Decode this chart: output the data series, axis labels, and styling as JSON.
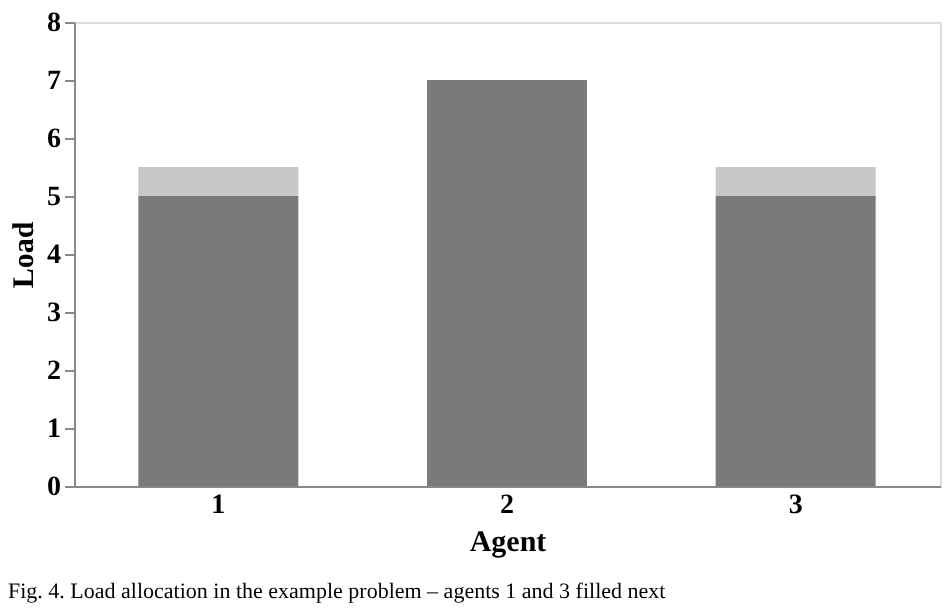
{
  "chart_data": {
    "type": "bar",
    "stacked": true,
    "xlabel": "Agent",
    "ylabel": "Load",
    "categories": [
      "1",
      "2",
      "3"
    ],
    "series": [
      {
        "color": "#7a7a7a",
        "values": [
          5,
          7,
          5
        ]
      },
      {
        "color": "#c8c8c8",
        "values": [
          0.5,
          null,
          0.5
        ]
      }
    ],
    "ylim": [
      0,
      8
    ],
    "yticks": [
      0,
      1,
      2,
      3,
      4,
      5,
      6,
      7,
      8
    ],
    "grid": false,
    "legend": false,
    "annotations": [
      "Fig. 4. Load allocation in the example problem – agents 1 and 3 filled next"
    ]
  }
}
